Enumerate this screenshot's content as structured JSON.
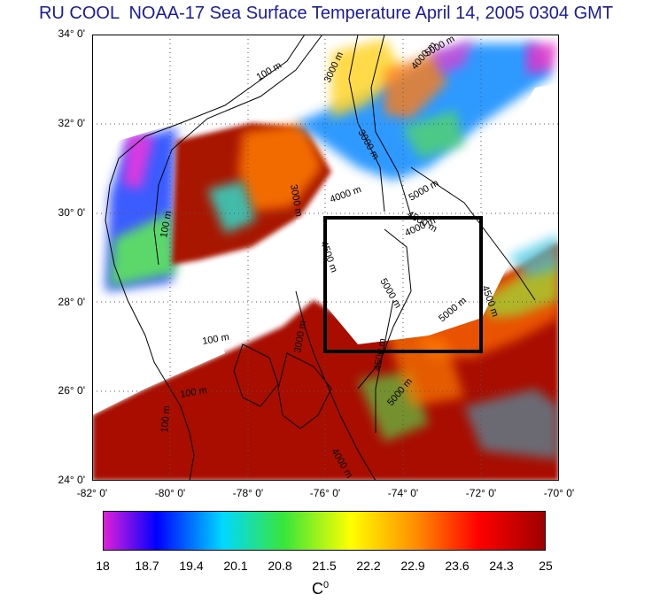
{
  "title": "RU COOL  NOAA-17 Sea Surface Temperature April 14, 2005 0304 GMT",
  "map": {
    "lat_labels": [
      "34° 0'",
      "32° 0'",
      "30° 0'",
      "28° 0'",
      "26° 0'",
      "24° 0'"
    ],
    "lon_labels": [
      "-82° 0'",
      "-80° 0'",
      "-78° 0'",
      "-76° 0'",
      "-74° 0'",
      "-72° 0'",
      "-70° 0'"
    ],
    "lat_range": [
      24,
      34
    ],
    "lon_range": [
      -82,
      -70
    ],
    "bathymetry_labels": [
      "100 m",
      "3000 m",
      "4000 m",
      "5000 m",
      "3000 m",
      "100 m",
      "3000 m",
      "4000 m",
      "5000 m",
      "4500 m",
      "4000 m",
      "4500 m",
      "5000 m",
      "5000 m",
      "4500 m",
      "5000 m",
      "100 m",
      "100 m",
      "3000 m",
      "100 m",
      "4000 m",
      "4500 m"
    ],
    "study_box": {
      "lon": [
        -76,
        -72
      ],
      "lat": [
        27,
        30
      ]
    }
  },
  "colorbar": {
    "ticks": [
      "18",
      "18.7",
      "19.4",
      "20.1",
      "20.8",
      "21.5",
      "22.2",
      "22.9",
      "23.6",
      "24.3",
      "25"
    ],
    "unit_base": "C",
    "unit_sup": "0",
    "colors": [
      "#e01fd8",
      "#0000ff",
      "#00d8ff",
      "#39e639",
      "#ffff00",
      "#ff8c00",
      "#ff0000",
      "#9e0000"
    ]
  }
}
